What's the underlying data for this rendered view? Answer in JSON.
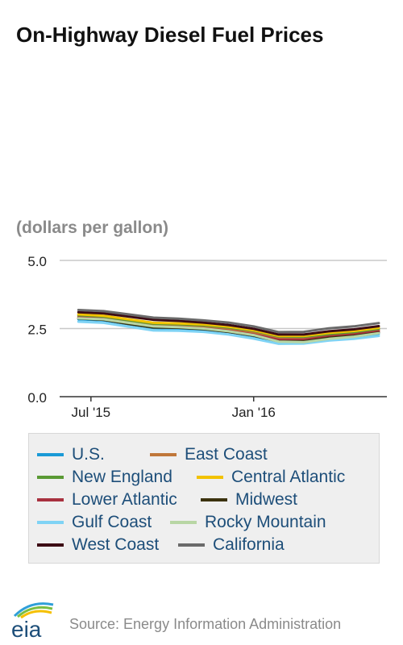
{
  "header": {
    "title": "On-Highway Diesel Fuel Prices",
    "units": "(dollars per gallon)"
  },
  "chart_data": {
    "type": "line",
    "title": "On-Highway Diesel Fuel Prices",
    "ylabel": "(dollars per gallon)",
    "xlabel": "",
    "ylim": [
      0,
      5
    ],
    "yticks": [
      "0.0",
      "2.5",
      "5.0"
    ],
    "x_ticks": [
      {
        "label": "Jul '15",
        "date": "2015-07-06"
      },
      {
        "label": "Jan '16",
        "date": "2016-01-04"
      }
    ],
    "grid": true,
    "legend_position": "bottom",
    "x": [
      "2015-06-22",
      "2015-07-20",
      "2015-08-17",
      "2015-09-14",
      "2015-10-12",
      "2015-11-09",
      "2015-12-07",
      "2016-01-04",
      "2016-02-01",
      "2016-02-29",
      "2016-03-28",
      "2016-04-25",
      "2016-05-23"
    ],
    "series": [
      {
        "name": "U.S.",
        "color": "#1a9ad6",
        "values": [
          2.84,
          2.8,
          2.66,
          2.52,
          2.5,
          2.46,
          2.37,
          2.22,
          2.02,
          2.03,
          2.14,
          2.2,
          2.31
        ]
      },
      {
        "name": "East Coast",
        "color": "#c0773a",
        "values": [
          2.95,
          2.9,
          2.76,
          2.63,
          2.6,
          2.56,
          2.48,
          2.34,
          2.14,
          2.14,
          2.26,
          2.33,
          2.45
        ]
      },
      {
        "name": "New England",
        "color": "#5a9a34",
        "values": [
          2.99,
          2.94,
          2.8,
          2.68,
          2.66,
          2.62,
          2.54,
          2.42,
          2.21,
          2.2,
          2.3,
          2.37,
          2.49
        ]
      },
      {
        "name": "Central Atlantic",
        "color": "#f2c200",
        "values": [
          3.02,
          2.97,
          2.84,
          2.71,
          2.69,
          2.65,
          2.57,
          2.44,
          2.23,
          2.23,
          2.34,
          2.41,
          2.53
        ]
      },
      {
        "name": "Lower Atlantic",
        "color": "#a8313f",
        "values": [
          2.9,
          2.85,
          2.71,
          2.58,
          2.56,
          2.51,
          2.42,
          2.28,
          2.09,
          2.09,
          2.21,
          2.28,
          2.4
        ]
      },
      {
        "name": "Midwest",
        "color": "#3b320e",
        "values": [
          2.87,
          2.82,
          2.67,
          2.54,
          2.53,
          2.48,
          2.38,
          2.24,
          2.03,
          2.03,
          2.16,
          2.23,
          2.35
        ]
      },
      {
        "name": "Gulf Coast",
        "color": "#7fd3f5",
        "values": [
          2.75,
          2.71,
          2.57,
          2.43,
          2.42,
          2.38,
          2.28,
          2.13,
          1.94,
          1.95,
          2.06,
          2.12,
          2.23
        ]
      },
      {
        "name": "Rocky Mountain",
        "color": "#b8d6a4",
        "values": [
          2.88,
          2.84,
          2.71,
          2.58,
          2.55,
          2.5,
          2.4,
          2.26,
          2.02,
          2.0,
          2.12,
          2.2,
          2.33
        ]
      },
      {
        "name": "West Coast",
        "color": "#3c0c14",
        "values": [
          3.1,
          3.06,
          2.94,
          2.82,
          2.78,
          2.72,
          2.63,
          2.49,
          2.28,
          2.28,
          2.4,
          2.47,
          2.59
        ]
      },
      {
        "name": "California",
        "color": "#6a6a6a",
        "values": [
          3.18,
          3.14,
          3.02,
          2.9,
          2.86,
          2.8,
          2.72,
          2.58,
          2.37,
          2.38,
          2.51,
          2.58,
          2.7
        ]
      }
    ]
  },
  "footer": {
    "logo_text": "eia",
    "source": "Source: Energy Information Administration"
  }
}
